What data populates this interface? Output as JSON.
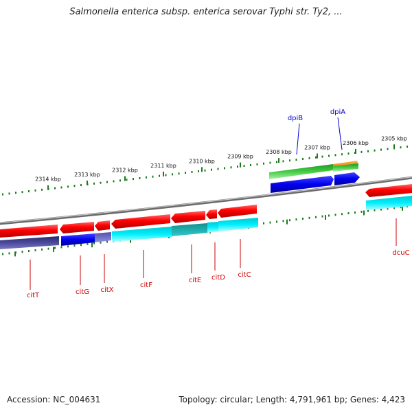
{
  "title": "Salmonella enterica subsp. enterica serovar Typhi str. Ty2, ...",
  "footer": {
    "accession": "Accession: NC_004631",
    "summary": "Topology: circular; Length: 4,791,961 bp; Genes: 4,423"
  },
  "colors": {
    "axis": "#1a7a1a",
    "backbone": "#8a8a8a",
    "label_red": "#cc0000",
    "label_blue": "#0000cc"
  },
  "ticks": [
    {
      "kbp": "2314 kbp"
    },
    {
      "kbp": "2313 kbp"
    },
    {
      "kbp": "2312 kbp"
    },
    {
      "kbp": "2311 kbp"
    },
    {
      "kbp": "2310 kbp"
    },
    {
      "kbp": "2309 kbp"
    },
    {
      "kbp": "2308 kbp"
    },
    {
      "kbp": "2307 kbp"
    },
    {
      "kbp": "2306 kbp"
    },
    {
      "kbp": "2305 kbp"
    }
  ],
  "genes": [
    {
      "name": "citT",
      "strand": "minus",
      "color": "#3a3a8c"
    },
    {
      "name": "citG",
      "strand": "minus",
      "color": "#0000dd"
    },
    {
      "name": "citX",
      "strand": "minus",
      "color": "#6060c0"
    },
    {
      "name": "citF",
      "strand": "minus",
      "color": "#00e5ee"
    },
    {
      "name": "citE",
      "strand": "minus",
      "color": "#10b0b0"
    },
    {
      "name": "citD",
      "strand": "minus",
      "color": "#00e5ee"
    },
    {
      "name": "citC",
      "strand": "minus",
      "color": "#00e5ee"
    },
    {
      "name": "dpiB",
      "strand": "plus",
      "color": "#33cc33"
    },
    {
      "name": "dpiA",
      "strand": "plus",
      "color": "#ff9900"
    },
    {
      "name": "dcuC",
      "strand": "minus",
      "color": "#00e5ee"
    }
  ]
}
